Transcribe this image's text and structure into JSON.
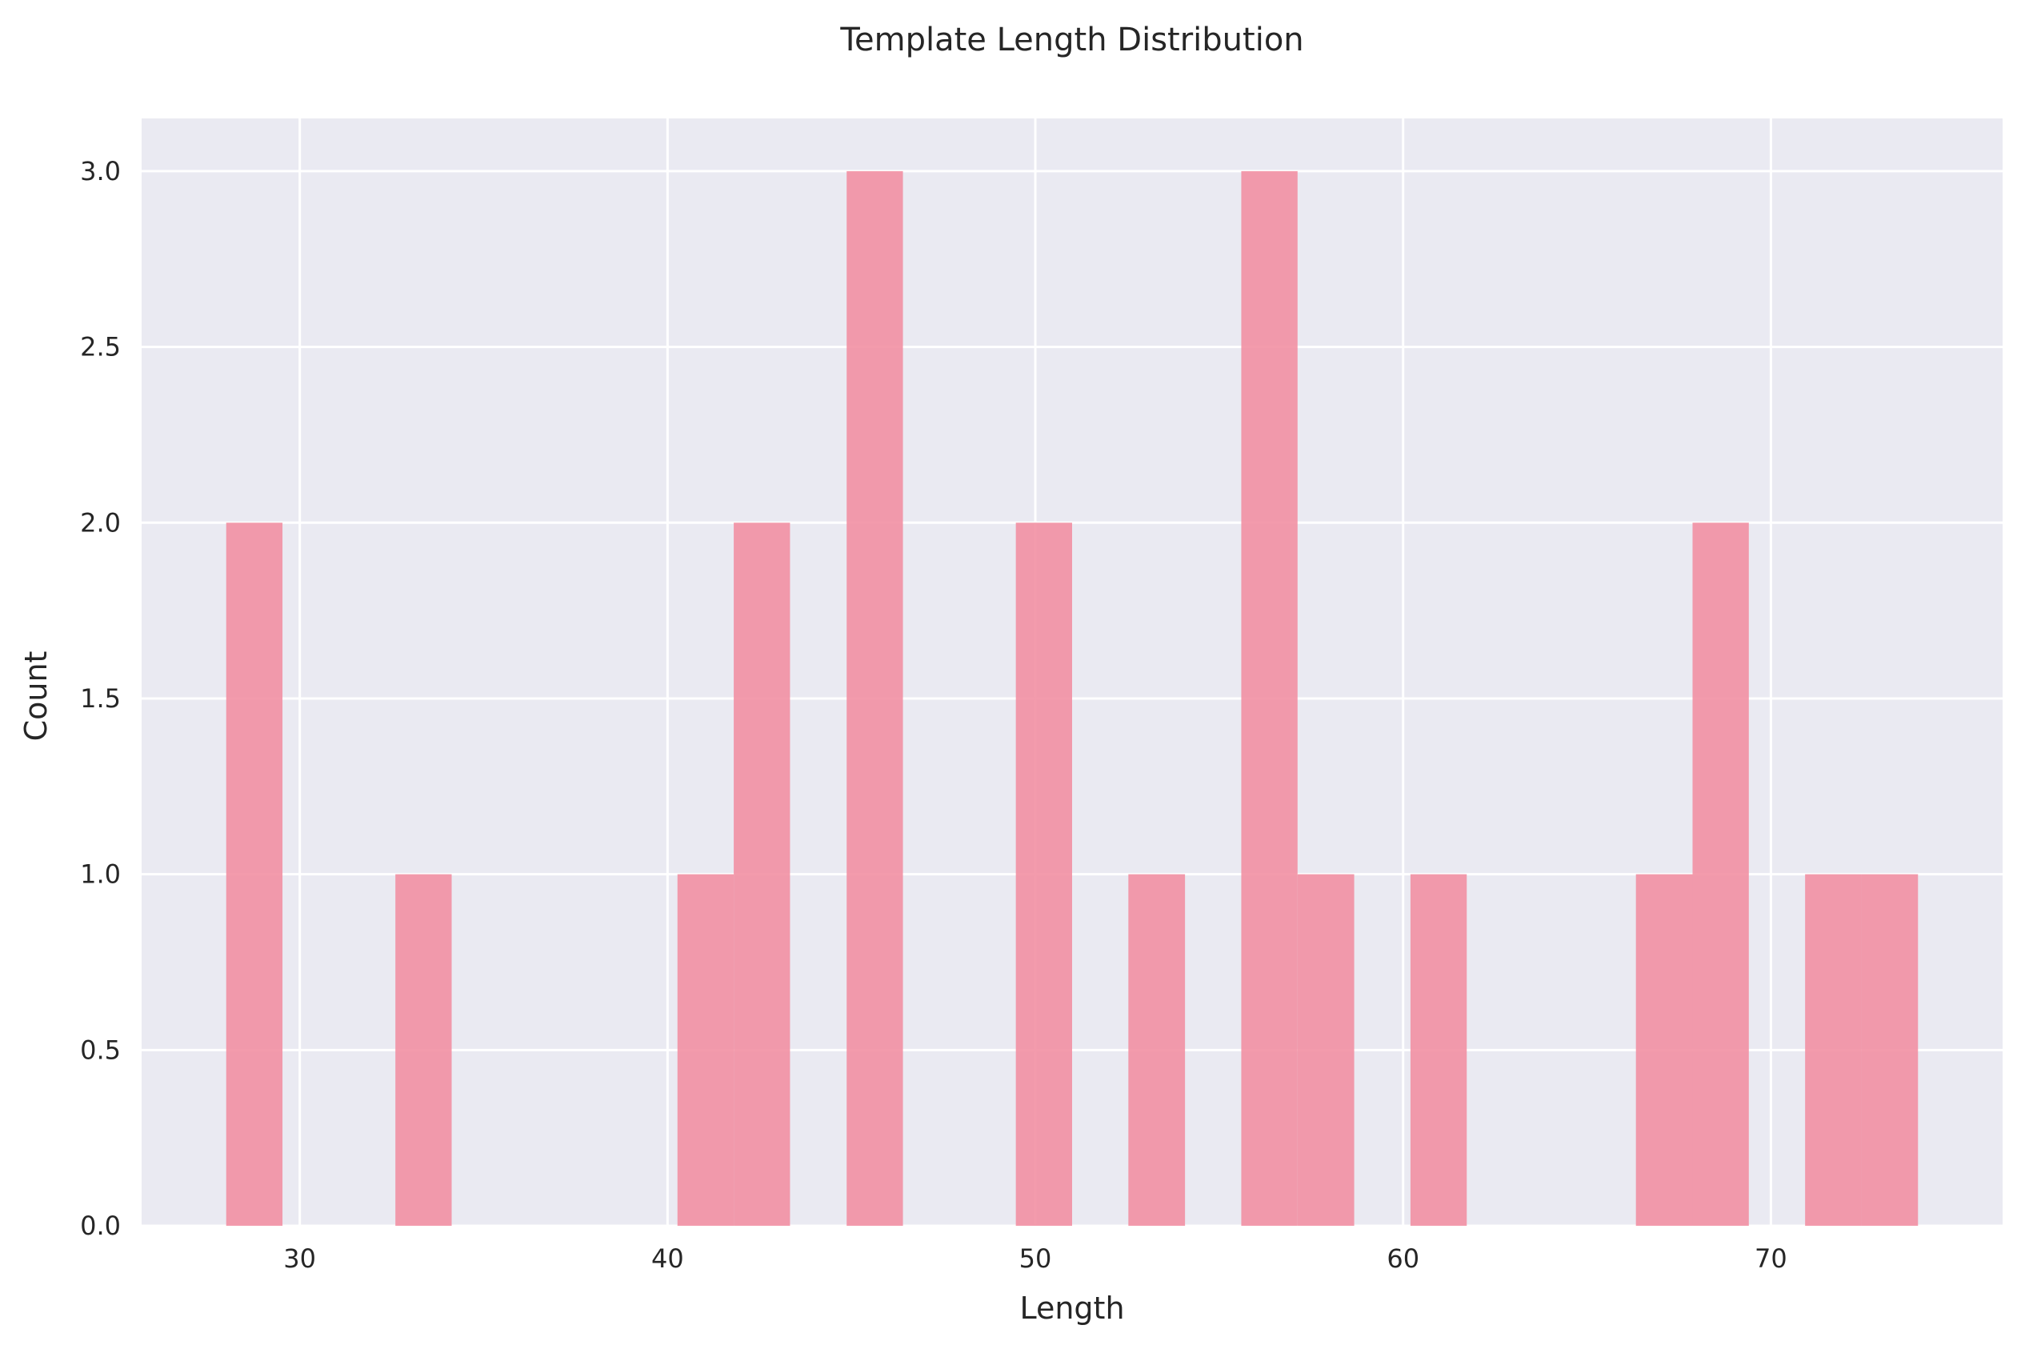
{
  "chart_data": {
    "type": "bar",
    "title": "Template Length Distribution",
    "xlabel": "Length",
    "ylabel": "Count",
    "xlim": [
      25.7,
      76.3
    ],
    "ylim": [
      0,
      3.15
    ],
    "x_ticks": [
      30,
      40,
      50,
      60,
      70
    ],
    "y_ticks": [
      0.0,
      0.5,
      1.0,
      1.5,
      2.0,
      2.5,
      3.0
    ],
    "grid": true,
    "bins": [
      {
        "x0": 28.0,
        "x1": 29.53,
        "count": 2
      },
      {
        "x0": 32.6,
        "x1": 34.13,
        "count": 1
      },
      {
        "x0": 40.27,
        "x1": 41.8,
        "count": 1
      },
      {
        "x0": 41.8,
        "x1": 43.33,
        "count": 2
      },
      {
        "x0": 44.87,
        "x1": 46.4,
        "count": 3
      },
      {
        "x0": 49.47,
        "x1": 51.0,
        "count": 2
      },
      {
        "x0": 52.53,
        "x1": 54.07,
        "count": 1
      },
      {
        "x0": 55.6,
        "x1": 57.13,
        "count": 3
      },
      {
        "x0": 57.13,
        "x1": 58.67,
        "count": 1
      },
      {
        "x0": 60.2,
        "x1": 61.73,
        "count": 1
      },
      {
        "x0": 66.33,
        "x1": 67.87,
        "count": 1
      },
      {
        "x0": 67.87,
        "x1": 69.4,
        "count": 2
      },
      {
        "x0": 70.93,
        "x1": 72.47,
        "count": 1
      },
      {
        "x0": 72.47,
        "x1": 74.0,
        "count": 1
      }
    ],
    "colors": {
      "bar": "#f18da0",
      "plot_background": "#eaeaf2",
      "grid": "#ffffff"
    }
  }
}
